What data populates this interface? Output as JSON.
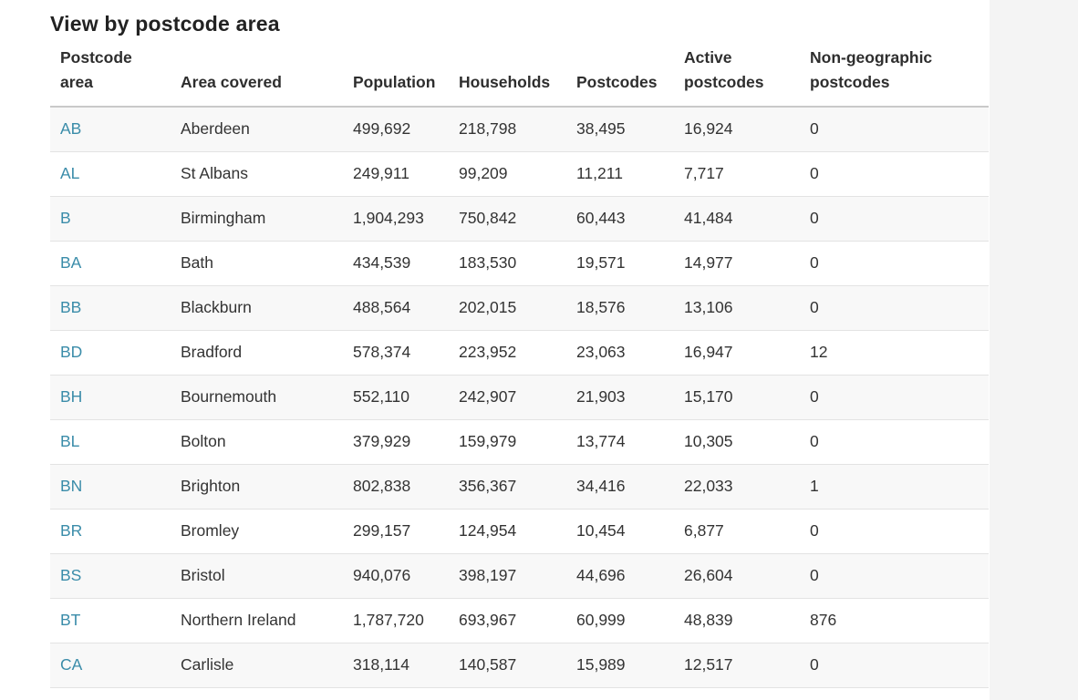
{
  "page": {
    "title": "View by postcode area"
  },
  "colors": {
    "link": "#3a8ca9",
    "row_stripe": "#f8f8f8",
    "header_border": "#c9c9c9",
    "gutter_background": "#f4f4f4"
  },
  "table": {
    "columns": [
      "Postcode area",
      "Area covered",
      "Population",
      "Households",
      "Postcodes",
      "Active postcodes",
      "Non-geographic postcodes"
    ],
    "rows": [
      {
        "postcode": "AB",
        "area": "Aberdeen",
        "population": "499,692",
        "households": "218,798",
        "postcodes": "38,495",
        "active_postcodes": "16,924",
        "non_geographic": "0"
      },
      {
        "postcode": "AL",
        "area": "St Albans",
        "population": "249,911",
        "households": "99,209",
        "postcodes": "11,211",
        "active_postcodes": "7,717",
        "non_geographic": "0"
      },
      {
        "postcode": "B",
        "area": "Birmingham",
        "population": "1,904,293",
        "households": "750,842",
        "postcodes": "60,443",
        "active_postcodes": "41,484",
        "non_geographic": "0"
      },
      {
        "postcode": "BA",
        "area": "Bath",
        "population": "434,539",
        "households": "183,530",
        "postcodes": "19,571",
        "active_postcodes": "14,977",
        "non_geographic": "0"
      },
      {
        "postcode": "BB",
        "area": "Blackburn",
        "population": "488,564",
        "households": "202,015",
        "postcodes": "18,576",
        "active_postcodes": "13,106",
        "non_geographic": "0"
      },
      {
        "postcode": "BD",
        "area": "Bradford",
        "population": "578,374",
        "households": "223,952",
        "postcodes": "23,063",
        "active_postcodes": "16,947",
        "non_geographic": "12"
      },
      {
        "postcode": "BH",
        "area": "Bournemouth",
        "population": "552,110",
        "households": "242,907",
        "postcodes": "21,903",
        "active_postcodes": "15,170",
        "non_geographic": "0"
      },
      {
        "postcode": "BL",
        "area": "Bolton",
        "population": "379,929",
        "households": "159,979",
        "postcodes": "13,774",
        "active_postcodes": "10,305",
        "non_geographic": "0"
      },
      {
        "postcode": "BN",
        "area": "Brighton",
        "population": "802,838",
        "households": "356,367",
        "postcodes": "34,416",
        "active_postcodes": "22,033",
        "non_geographic": "1"
      },
      {
        "postcode": "BR",
        "area": "Bromley",
        "population": "299,157",
        "households": "124,954",
        "postcodes": "10,454",
        "active_postcodes": "6,877",
        "non_geographic": "0"
      },
      {
        "postcode": "BS",
        "area": "Bristol",
        "population": "940,076",
        "households": "398,197",
        "postcodes": "44,696",
        "active_postcodes": "26,604",
        "non_geographic": "0"
      },
      {
        "postcode": "BT",
        "area": "Northern Ireland",
        "population": "1,787,720",
        "households": "693,967",
        "postcodes": "60,999",
        "active_postcodes": "48,839",
        "non_geographic": "876"
      },
      {
        "postcode": "CA",
        "area": "Carlisle",
        "population": "318,114",
        "households": "140,587",
        "postcodes": "15,989",
        "active_postcodes": "12,517",
        "non_geographic": "0"
      }
    ]
  }
}
